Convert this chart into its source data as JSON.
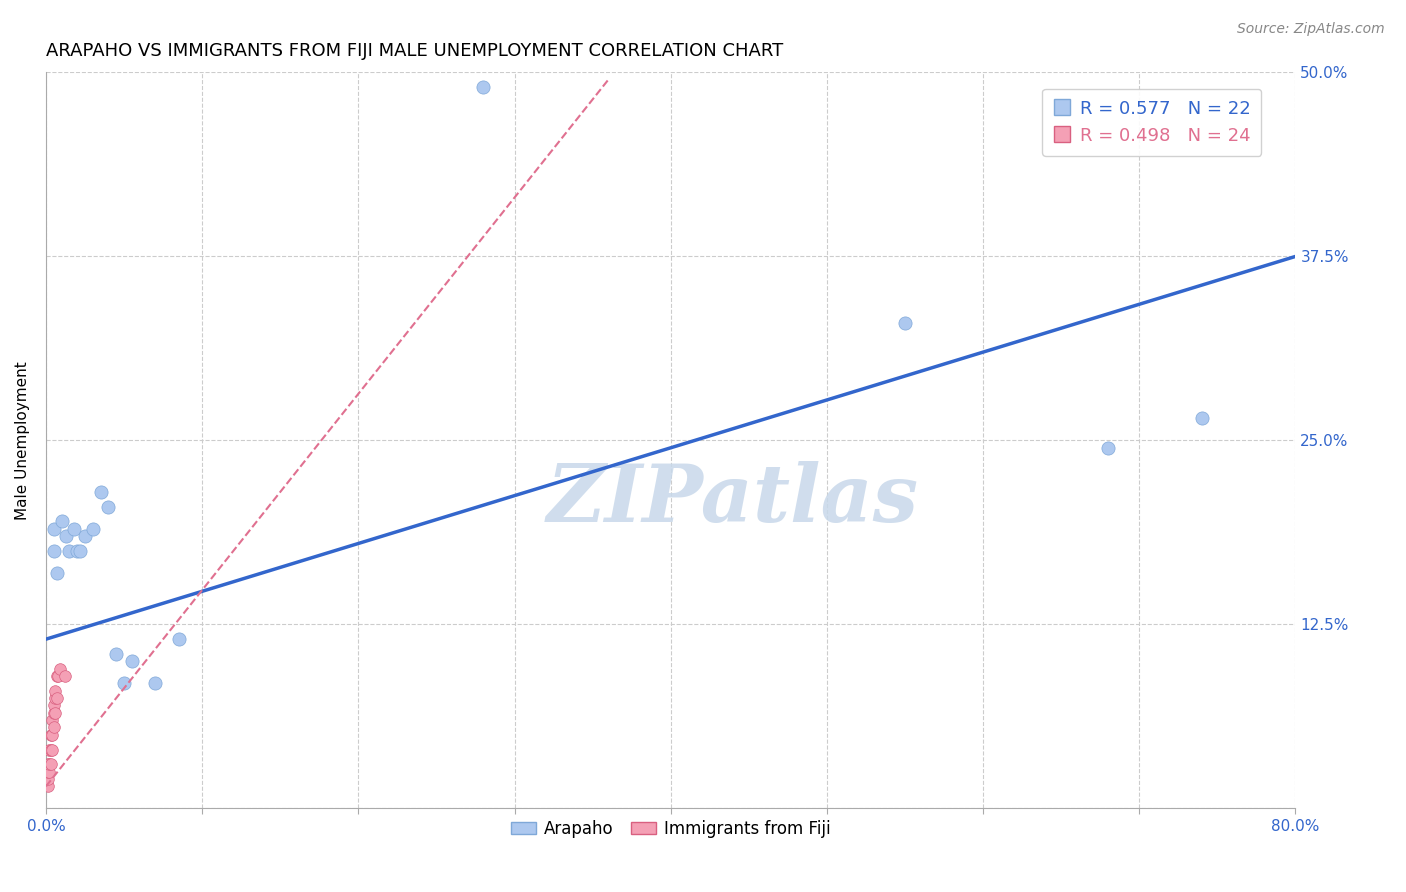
{
  "title": "ARAPAHO VS IMMIGRANTS FROM FIJI MALE UNEMPLOYMENT CORRELATION CHART",
  "source": "Source: ZipAtlas.com",
  "ylabel": "Male Unemployment",
  "xlim": [
    0.0,
    0.8
  ],
  "ylim": [
    0.0,
    0.5
  ],
  "xtick_positions": [
    0.0,
    0.1,
    0.2,
    0.3,
    0.4,
    0.5,
    0.6,
    0.7,
    0.8
  ],
  "xticklabels": [
    "0.0%",
    "",
    "",
    "",
    "",
    "",
    "",
    "",
    "80.0%"
  ],
  "ytick_positions": [
    0.0,
    0.125,
    0.25,
    0.375,
    0.5
  ],
  "yticklabels": [
    "",
    "12.5%",
    "25.0%",
    "37.5%",
    "50.0%"
  ],
  "grid_color": "#cccccc",
  "background_color": "#ffffff",
  "arapaho_x": [
    0.005,
    0.005,
    0.007,
    0.01,
    0.013,
    0.015,
    0.018,
    0.02,
    0.022,
    0.025,
    0.03,
    0.035,
    0.04,
    0.045,
    0.05,
    0.055,
    0.07,
    0.085,
    0.28,
    0.55,
    0.68,
    0.74
  ],
  "arapaho_y": [
    0.19,
    0.175,
    0.16,
    0.195,
    0.185,
    0.175,
    0.19,
    0.175,
    0.175,
    0.185,
    0.19,
    0.215,
    0.205,
    0.105,
    0.085,
    0.1,
    0.085,
    0.115,
    0.49,
    0.33,
    0.245,
    0.265
  ],
  "arapaho_color": "#adc8ef",
  "arapaho_edge_color": "#7fa8d8",
  "arapaho_marker_size": 90,
  "arapaho_R": 0.577,
  "arapaho_N": 22,
  "arapaho_trendline_x": [
    0.0,
    0.8
  ],
  "arapaho_trendline_y": [
    0.115,
    0.375
  ],
  "arapaho_trend_color": "#3366cc",
  "fiji_x": [
    0.001,
    0.001,
    0.001,
    0.001,
    0.002,
    0.002,
    0.002,
    0.003,
    0.003,
    0.003,
    0.004,
    0.004,
    0.004,
    0.005,
    0.005,
    0.005,
    0.006,
    0.006,
    0.006,
    0.007,
    0.007,
    0.008,
    0.009,
    0.012
  ],
  "fiji_y": [
    0.015,
    0.02,
    0.025,
    0.03,
    0.025,
    0.03,
    0.04,
    0.03,
    0.04,
    0.05,
    0.04,
    0.05,
    0.06,
    0.055,
    0.065,
    0.07,
    0.065,
    0.075,
    0.08,
    0.075,
    0.09,
    0.09,
    0.095,
    0.09
  ],
  "fiji_color": "#f4a0b5",
  "fiji_edge_color": "#d96080",
  "fiji_marker_size": 70,
  "fiji_R": 0.498,
  "fiji_N": 24,
  "fiji_trendline_x": [
    0.0,
    0.36
  ],
  "fiji_trendline_y": [
    0.015,
    0.495
  ],
  "fiji_trend_color": "#e07090",
  "watermark": "ZIPatlas",
  "watermark_color": "#c8d8ea",
  "title_fontsize": 13,
  "label_fontsize": 11,
  "tick_fontsize": 11,
  "source_fontsize": 10
}
